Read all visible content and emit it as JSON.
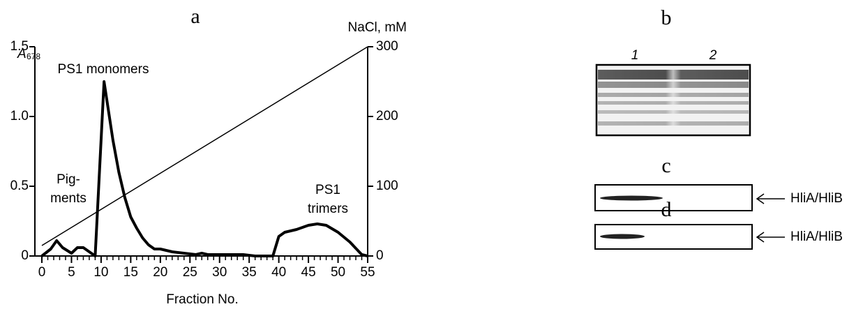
{
  "chart_data": {
    "type": "line",
    "title": "a",
    "xlabel": "Fraction No.",
    "ylabel": "A",
    "ylabel_subscript": "678",
    "y2label": "NaCl, mM",
    "xlim": [
      0,
      55
    ],
    "xticks": [
      0,
      5,
      10,
      15,
      20,
      25,
      30,
      35,
      40,
      45,
      50,
      55
    ],
    "xminorticks": [
      0,
      1,
      2,
      3,
      4,
      5,
      6,
      7,
      8,
      9,
      10,
      11,
      12,
      13,
      14,
      15,
      16,
      17,
      18,
      19,
      20,
      21,
      22,
      23,
      24,
      25,
      26,
      27,
      28,
      29,
      30,
      31,
      32,
      33,
      34,
      35,
      36,
      37,
      38,
      39,
      40,
      41,
      42,
      43,
      44,
      45,
      46,
      47,
      48,
      49,
      50,
      51,
      52,
      53,
      54,
      55
    ],
    "ylim": [
      0,
      1.5
    ],
    "yticks": [
      0,
      0.5,
      {
        "value": 1,
        "label": "1.0"
      },
      1.5
    ],
    "y2lim": [
      0,
      300
    ],
    "y2ticks": [
      0,
      100,
      200,
      300
    ],
    "series": [
      {
        "color": "#000000",
        "x": [
          0,
          1.5,
          2.5,
          3.5,
          5,
          6,
          7,
          8,
          9,
          10.5,
          12,
          13,
          14,
          15,
          16,
          17,
          18,
          19,
          20,
          21,
          22,
          24,
          26,
          27,
          28,
          30,
          32,
          34,
          36,
          39,
          40,
          41,
          43,
          45,
          46.5,
          48,
          50,
          52,
          54,
          55
        ],
        "values": [
          0,
          0.05,
          0.11,
          0.06,
          0.02,
          0.06,
          0.06,
          0.03,
          0,
          1.25,
          0.83,
          0.6,
          0.42,
          0.28,
          0.2,
          0.13,
          0.08,
          0.05,
          0.05,
          0.04,
          0.03,
          0.02,
          0.01,
          0.02,
          0.01,
          0.01,
          0.01,
          0.01,
          0,
          0,
          0.14,
          0.17,
          0.19,
          0.22,
          0.23,
          0.22,
          0.17,
          0.1,
          0.01,
          0
        ]
      },
      {
        "color": "#000000",
        "axis": "y2",
        "x": [
          0,
          55
        ],
        "values": [
          15,
          300
        ]
      }
    ],
    "annotations": [
      [
        "PS1 monomers"
      ],
      [
        "Pig-",
        "ments"
      ],
      [
        "PS1",
        "trimers"
      ]
    ]
  },
  "gels": {
    "b": {
      "label": "b",
      "lanes": [
        "1",
        "2"
      ]
    },
    "c": {
      "label": "c",
      "band_label": "HliA/HliB"
    },
    "d": {
      "label": "d",
      "band_label": "HliA/HliB"
    }
  }
}
